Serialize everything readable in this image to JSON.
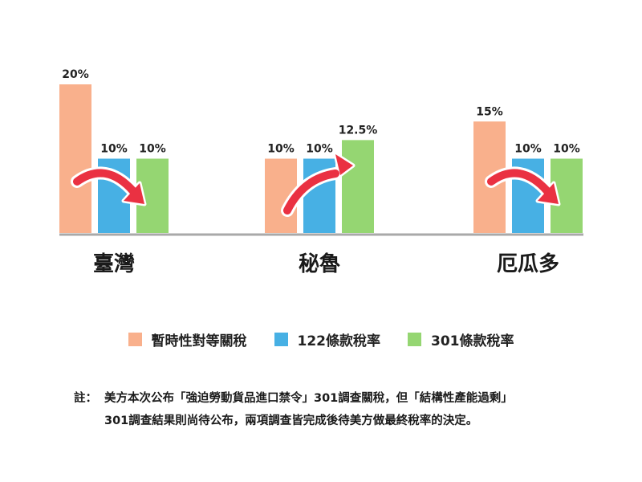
{
  "chart_data": {
    "type": "bar",
    "categories": [
      "臺灣",
      "秘魯",
      "厄瓜多"
    ],
    "series": [
      {
        "name": "暫時性對等關稅",
        "values": [
          20,
          10,
          15
        ],
        "labels": [
          "20%",
          "10%",
          "15%"
        ],
        "color": "#f9b08c"
      },
      {
        "name": "122條款稅率",
        "values": [
          10,
          10,
          10
        ],
        "labels": [
          "10%",
          "10%",
          "10%"
        ],
        "color": "#47b0e4"
      },
      {
        "name": "301條款稅率",
        "values": [
          10,
          12.5,
          10
        ],
        "labels": [
          "10%",
          "12.5%",
          "10%"
        ],
        "color": "#95d672"
      }
    ],
    "arrows": [
      "down",
      "up",
      "down"
    ],
    "arrow_color": "#ea3142",
    "ylim": [
      0,
      20
    ],
    "grid": false,
    "legend_position": "bottom"
  },
  "note": {
    "prefix": "註：",
    "line1": "美方本次公布「強迫勞動貨品進口禁令」301調查關稅，但「結構性產能過剩」",
    "line2": "301調查結果則尚待公布，兩項調查皆完成後待美方做最終稅率的決定。"
  }
}
